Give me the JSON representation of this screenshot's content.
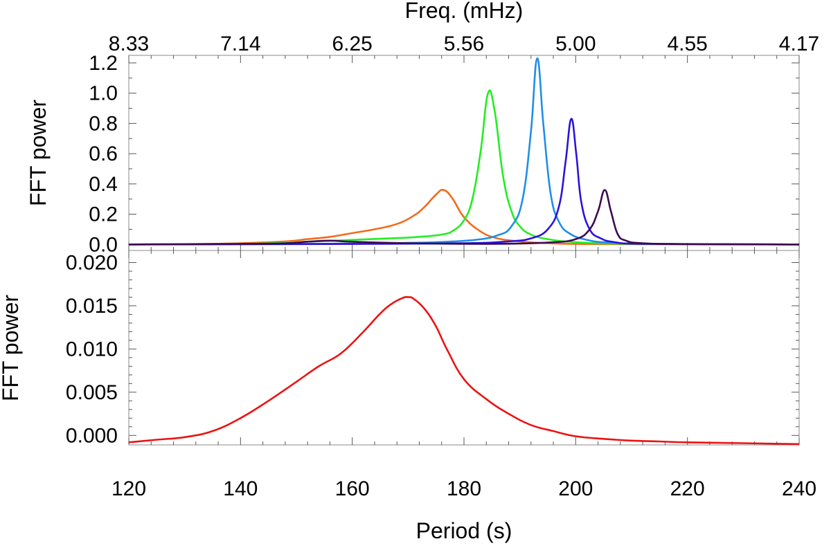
{
  "chart_data": [
    {
      "type": "line",
      "panel": "top",
      "ylabel": "FFT power",
      "top_axis_title": "Freq. (mHz)",
      "top_tick_labels": [
        "8.33",
        "7.14",
        "6.25",
        "5.56",
        "5.00",
        "4.55",
        "4.17"
      ],
      "top_tick_periods": [
        120,
        140,
        160,
        180,
        200,
        220,
        240
      ],
      "xlim": [
        120,
        240
      ],
      "ylim": [
        -0.04,
        1.25
      ],
      "yticks": [
        0.0,
        0.2,
        0.4,
        0.6,
        0.8,
        1.0,
        1.2
      ],
      "ytick_labels": [
        "0.0",
        "0.2",
        "0.4",
        "0.6",
        "0.8",
        "1.0",
        "1.2"
      ],
      "series": [
        {
          "name": "orange",
          "color": "#f26a1b",
          "x": [
            120,
            130,
            140,
            148,
            152,
            156,
            160,
            164,
            168,
            171,
            173,
            175,
            176.4,
            178,
            180,
            183,
            186,
            190,
            195,
            205,
            240
          ],
          "y": [
            0,
            0.002,
            0.008,
            0.02,
            0.035,
            0.05,
            0.075,
            0.1,
            0.135,
            0.19,
            0.25,
            0.33,
            0.36,
            0.3,
            0.18,
            0.085,
            0.04,
            0.02,
            0.008,
            0.002,
            0
          ]
        },
        {
          "name": "green",
          "color": "#22ee22",
          "x": [
            120,
            140,
            150,
            160,
            168,
            172,
            176,
            178,
            180,
            181.5,
            183,
            184.3,
            185.5,
            187,
            188.5,
            190,
            192,
            195,
            200,
            210,
            240
          ],
          "y": [
            0,
            0.003,
            0.015,
            0.03,
            0.042,
            0.05,
            0.065,
            0.09,
            0.16,
            0.3,
            0.62,
            1.0,
            0.88,
            0.45,
            0.22,
            0.12,
            0.065,
            0.035,
            0.015,
            0.004,
            0
          ]
        },
        {
          "name": "lightblue",
          "color": "#1e8ee8",
          "x": [
            120,
            150,
            165,
            175,
            182,
            186,
            188.5,
            190.5,
            192,
            193.1,
            194.2,
            195.5,
            197,
            199,
            202,
            206,
            215,
            240
          ],
          "y": [
            0,
            0.003,
            0.008,
            0.015,
            0.03,
            0.06,
            0.12,
            0.3,
            0.75,
            1.23,
            0.8,
            0.34,
            0.15,
            0.07,
            0.03,
            0.012,
            0.004,
            0
          ]
        },
        {
          "name": "blue",
          "color": "#2a12dd",
          "x": [
            120,
            160,
            180,
            188,
            192,
            195,
            197,
            198.2,
            199.2,
            200.1,
            201,
            202.5,
            204.5,
            207,
            212,
            240
          ],
          "y": [
            0,
            0.003,
            0.008,
            0.02,
            0.04,
            0.1,
            0.25,
            0.55,
            0.83,
            0.6,
            0.28,
            0.1,
            0.04,
            0.015,
            0.004,
            0
          ]
        },
        {
          "name": "purple",
          "color": "#3c0a52",
          "x": [
            120,
            145,
            152,
            156,
            160,
            170,
            185,
            195,
            200,
            202.5,
            204,
            205.2,
            206.3,
            207.5,
            209,
            212,
            220,
            240
          ],
          "y": [
            0,
            0.005,
            0.018,
            0.025,
            0.018,
            0.008,
            0.004,
            0.012,
            0.035,
            0.1,
            0.22,
            0.36,
            0.22,
            0.07,
            0.025,
            0.008,
            0.002,
            0
          ]
        }
      ]
    },
    {
      "type": "line",
      "panel": "bottom",
      "ylabel": "FFT power",
      "xlabel": "Period (s)",
      "xlim": [
        120,
        240
      ],
      "xticks": [
        120,
        140,
        160,
        180,
        200,
        220,
        240
      ],
      "xtick_labels": [
        "120",
        "140",
        "160",
        "180",
        "200",
        "220",
        "240"
      ],
      "ylim": [
        -0.0011,
        0.0214
      ],
      "yticks": [
        0.0,
        0.005,
        0.01,
        0.015,
        0.02
      ],
      "ytick_labels": [
        "0.000",
        "0.005",
        "0.010",
        "0.015",
        "0.020"
      ],
      "series": [
        {
          "name": "red",
          "color": "#ee1111",
          "x": [
            120,
            125,
            130,
            135,
            140,
            145,
            150,
            154,
            158,
            162,
            165,
            167,
            169,
            170,
            171,
            173,
            175,
            177,
            180,
            184,
            188,
            192,
            196,
            200,
            205,
            210,
            215,
            220,
            230,
            240
          ],
          "y": [
            -0.0008,
            -0.0005,
            -0.0002,
            0.0005,
            0.002,
            0.004,
            0.0062,
            0.008,
            0.0095,
            0.012,
            0.0141,
            0.0152,
            0.0159,
            0.016,
            0.0158,
            0.0146,
            0.0126,
            0.0099,
            0.0065,
            0.0042,
            0.0025,
            0.0012,
            0.0005,
            -0.0001,
            -0.0004,
            -0.0006,
            -0.0007,
            -0.0008,
            -0.0009,
            -0.001
          ]
        }
      ]
    }
  ]
}
